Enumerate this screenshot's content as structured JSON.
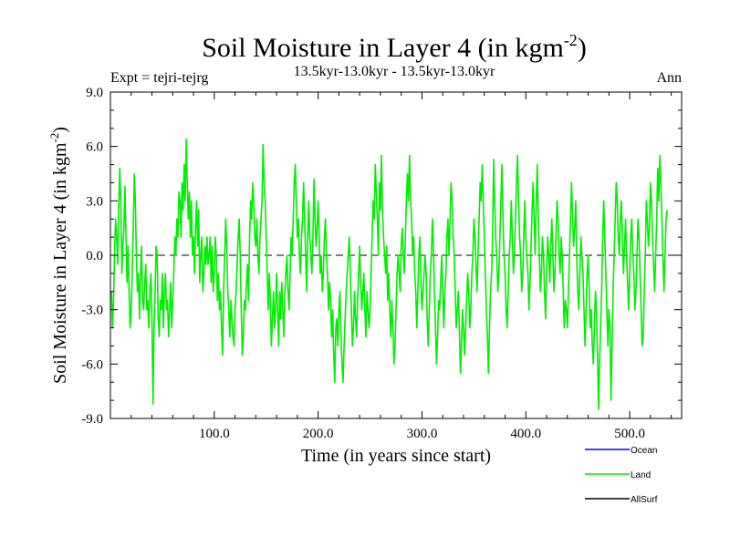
{
  "chart_data": {
    "type": "line",
    "title_main": "Soil Moisture in Layer 4 (in kgm",
    "title_sup": "-2",
    "title_close": ")",
    "left_label": "Expt = tejri-tejrg",
    "subtitle": "13.5kyr-13.0kyr - 13.5kyr-13.0kyr",
    "right_label": "Ann",
    "xlabel": "Time (in years since start)",
    "ylabel_main": "Soil Moisture in Layer 4 (in kgm",
    "ylabel_sup": "-2",
    "ylabel_close": ")",
    "xlim": [
      0,
      550
    ],
    "ylim": [
      -9,
      9
    ],
    "x_ticks": [
      100,
      200,
      300,
      400,
      500
    ],
    "x_tick_labels": [
      "100.0",
      "200.0",
      "300.0",
      "400.0",
      "500.0"
    ],
    "y_ticks": [
      9,
      6,
      3,
      0,
      -3,
      -6,
      -9
    ],
    "y_tick_labels": [
      "9.0",
      "6.0",
      "3.0",
      "0.0",
      "-3.0",
      "-6.0",
      "-9.0"
    ],
    "zero_line": true,
    "legend": [
      {
        "name": "Ocean",
        "color": "#0000ff"
      },
      {
        "name": "Land",
        "color": "#00ee00"
      },
      {
        "name": "AllSurf",
        "color": "#000000"
      }
    ],
    "series": [
      {
        "name": "Land",
        "color": "#00ee00",
        "x_start": 1,
        "x_step": 1,
        "values": [
          -2.0,
          -4.0,
          -2.5,
          0.0,
          2.0,
          1.0,
          -0.5,
          2.5,
          4.8,
          3.0,
          -1.0,
          0.5,
          1.5,
          3.8,
          1.0,
          -1.5,
          0.5,
          -2.0,
          -4.0,
          -3.0,
          -1.0,
          1.5,
          4.5,
          3.0,
          0.0,
          -2.0,
          -1.0,
          -3.5,
          -1.0,
          0.5,
          -2.5,
          -3.0,
          -1.5,
          -0.5,
          -3.0,
          -2.5,
          -4.0,
          -2.0,
          -1.0,
          -3.5,
          -8.2,
          -4.0,
          -2.0,
          0.5,
          0.0,
          -3.5,
          -4.5,
          -2.5,
          -3.0,
          -1.0,
          -4.0,
          -2.0,
          -1.0,
          -3.0,
          -2.5,
          -4.5,
          -3.0,
          -1.5,
          -4.0,
          -2.5,
          -1.0,
          1.0,
          0.0,
          2.0,
          1.0,
          3.5,
          3.0,
          1.0,
          4.0,
          2.5,
          5.0,
          3.0,
          6.4,
          4.0,
          2.0,
          3.5,
          1.0,
          3.0,
          0.0,
          1.0,
          -1.0,
          1.5,
          3.0,
          0.5,
          2.5,
          -1.5,
          0.0,
          1.0,
          -2.0,
          -1.0,
          0.5,
          -0.5,
          1.0,
          -0.5,
          0.0,
          1.0,
          -1.5,
          0.5,
          -2.0,
          -1.0,
          1.0,
          0.0,
          -2.5,
          -1.0,
          -3.0,
          -2.0,
          -4.0,
          -5.5,
          -2.0,
          0.0,
          2.0,
          0.5,
          -2.0,
          -3.0,
          -4.5,
          -2.5,
          -3.5,
          -4.5,
          -5.0,
          -3.0,
          -2.0,
          -0.5,
          1.0,
          2.0,
          0.0,
          -3.0,
          -5.5,
          -4.5,
          -2.5,
          -3.0,
          -1.5,
          -0.5,
          -2.5,
          1.0,
          3.0,
          2.0,
          4.0,
          3.0,
          1.0,
          0.5,
          2.0,
          0.0,
          -1.0,
          1.0,
          2.0,
          3.0,
          6.1,
          4.0,
          3.0,
          1.0,
          -1.0,
          -3.0,
          -1.0,
          -2.5,
          -5.0,
          -3.5,
          -2.0,
          -4.0,
          -3.0,
          -1.0,
          -3.0,
          -5.0,
          -2.0,
          -3.5,
          -1.5,
          -3.0,
          -4.5,
          -2.0,
          -1.0,
          0.0,
          -2.0,
          -3.0,
          -1.0,
          1.0,
          0.0,
          2.0,
          4.0,
          5.0,
          3.0,
          1.0,
          2.0,
          0.0,
          -1.0,
          1.0,
          2.0,
          4.0,
          2.0,
          0.0,
          -2.0,
          1.0,
          3.0,
          1.0,
          0.0,
          -1.0,
          1.0,
          4.2,
          2.0,
          0.5,
          1.5,
          3.0,
          1.0,
          -1.0,
          0.0,
          -2.0,
          -1.0,
          1.0,
          2.0,
          0.0,
          -1.0,
          -3.0,
          -1.5,
          -2.5,
          -4.5,
          -3.0,
          -5.5,
          -7.0,
          -4.0,
          -3.5,
          -5.0,
          -3.0,
          -2.0,
          -4.5,
          -6.0,
          -7.0,
          -5.0,
          -3.5,
          -2.0,
          -1.0,
          0.0,
          1.0,
          -1.0,
          -3.0,
          -5.0,
          -4.0,
          -2.0,
          -3.5,
          -4.5,
          -2.5,
          -1.0,
          0.5,
          -1.5,
          -3.0,
          -2.0,
          -1.0,
          -3.0,
          -4.5,
          -2.0,
          -3.0,
          -4.0,
          -3.0,
          -1.0,
          1.0,
          3.0,
          2.0,
          5.0,
          3.5,
          2.0,
          0.0,
          4.0,
          2.5,
          5.5,
          2.5,
          1.0,
          0.0,
          -1.0,
          0.5,
          -2.5,
          -1.0,
          -3.0,
          -4.5,
          -2.5,
          -4.0,
          -6.0,
          -5.0,
          -3.0,
          -1.0,
          0.0,
          -1.0,
          -2.0,
          0.5,
          1.5,
          0.0,
          -1.0,
          1.0,
          3.0,
          4.5,
          3.0,
          5.5,
          3.0,
          2.0,
          0.0,
          1.0,
          -1.0,
          -2.0,
          -4.0,
          -2.0,
          0.0,
          1.0,
          -1.5,
          -3.0,
          -2.0,
          -1.0,
          0.0,
          -1.0,
          -3.5,
          -5.0,
          -3.0,
          -1.0,
          0.0,
          2.0,
          0.5,
          -2.0,
          -4.0,
          -6.0,
          -4.5,
          -2.5,
          -3.0,
          -1.5,
          0.0,
          -2.0,
          -4.0,
          -2.0,
          -1.0,
          1.0,
          2.0,
          0.0,
          2.0,
          4.0,
          3.0,
          1.0,
          0.0,
          -2.0,
          -4.0,
          -3.0,
          -2.0,
          -4.0,
          -6.5,
          -5.0,
          -3.0,
          -4.0,
          -5.5,
          -4.0,
          -2.5,
          -1.0,
          -2.0,
          -4.0,
          -3.0,
          -1.0,
          0.0,
          2.0,
          1.0,
          -0.5,
          -2.0,
          0.0,
          2.0,
          4.0,
          3.0,
          5.0,
          3.0,
          1.0,
          -1.0,
          -3.0,
          -4.5,
          -6.5,
          -4.0,
          -2.0,
          -1.0,
          1.0,
          5.3,
          3.0,
          1.0,
          0.0,
          -2.0,
          -1.0,
          1.0,
          3.0,
          5.0,
          2.0,
          0.0,
          -1.0,
          -3.0,
          -4.0,
          -2.0,
          0.0,
          1.0,
          3.0,
          1.0,
          -1.0,
          0.0,
          2.0,
          4.0,
          5.5,
          3.0,
          1.0,
          0.0,
          -2.0,
          -1.0,
          1.0,
          3.0,
          1.0,
          0.0,
          -1.0,
          -3.0,
          -1.5,
          0.5,
          2.5,
          4.0,
          2.0,
          0.0,
          3.0,
          5.0,
          2.0,
          0.0,
          -2.0,
          -1.0,
          1.0,
          0.0,
          -2.0,
          -3.5,
          -1.0,
          1.0,
          0.0,
          -1.5,
          0.5,
          2.0,
          0.0,
          -2.0,
          -1.0,
          1.0,
          3.0,
          2.0,
          0.0,
          -1.0,
          1.0,
          0.0,
          -2.0,
          -4.0,
          -2.5,
          -3.0,
          -4.0,
          -2.0,
          0.0,
          2.0,
          4.0,
          2.0,
          0.5,
          1.5,
          3.0,
          0.0,
          -2.0,
          -3.0,
          -1.0,
          1.0,
          0.0,
          -1.0,
          -3.0,
          -5.0,
          -3.0,
          -1.0,
          0.0,
          -2.0,
          -4.0,
          -3.0,
          -5.0,
          -6.0,
          -4.0,
          -2.0,
          -3.0,
          -5.5,
          -8.5,
          -6.0,
          -4.0,
          -2.0,
          1.0,
          3.0,
          1.0,
          -1.0,
          -3.0,
          -5.0,
          -3.0,
          -4.0,
          -8.0,
          -5.0,
          -2.0,
          0.0,
          2.0,
          4.0,
          3.0,
          1.0,
          0.0,
          2.0,
          3.0,
          1.0,
          -1.0,
          0.5,
          2.0,
          0.0,
          -1.5,
          -3.0,
          -1.0,
          1.0,
          2.0,
          0.0,
          -1.0,
          -3.0,
          -2.0,
          0.0,
          2.0,
          1.0,
          -1.0,
          -3.0,
          -5.0,
          -4.5,
          -2.0,
          0.0,
          3.0,
          2.0,
          0.5,
          1.5,
          4.0,
          3.0,
          1.0,
          -0.5,
          -2.0,
          0.0,
          2.0,
          4.8,
          3.0,
          5.5,
          4.0,
          2.0,
          0.0,
          -2.0,
          0.0,
          2.0,
          2.5
        ]
      }
    ]
  }
}
